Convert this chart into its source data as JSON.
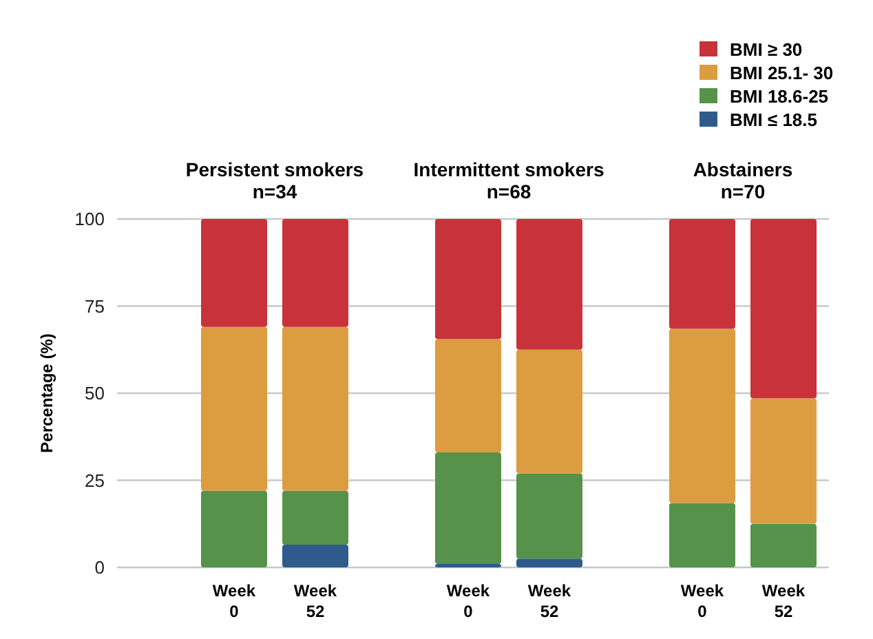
{
  "chart_data": {
    "type": "bar",
    "stacked": true,
    "ylabel": "Percentage (%)",
    "categories": [
      "Week 0",
      "Week 52",
      "Week 0",
      "Week 52",
      "Week 0",
      "Week 52"
    ],
    "series": [
      {
        "name": "BMI ≤ 18.5",
        "color": "#2e5b8c",
        "values": [
          0,
          6.5,
          1,
          2.5,
          0,
          0
        ]
      },
      {
        "name": "BMI 18.6-25",
        "color": "#56924a",
        "values": [
          22,
          15.5,
          32,
          24.5,
          18.5,
          12.5
        ]
      },
      {
        "name": "BMI 25.1- 30",
        "color": "#dc9d40",
        "values": [
          47,
          47,
          32.5,
          35.5,
          50,
          36
        ]
      },
      {
        "name": "BMI ≥ 30",
        "color": "#c8323a",
        "values": [
          31,
          31,
          34.5,
          37.5,
          31.5,
          51.5
        ]
      }
    ],
    "annotations": [
      "Persistent smokers\nn=34",
      "Intermittent smokers\nn=68",
      "Abstainers\nn=70"
    ],
    "ylim": [
      0,
      100
    ],
    "yticks": [
      0,
      25,
      50,
      75,
      100
    ],
    "grid": "y",
    "legend": "top right"
  }
}
